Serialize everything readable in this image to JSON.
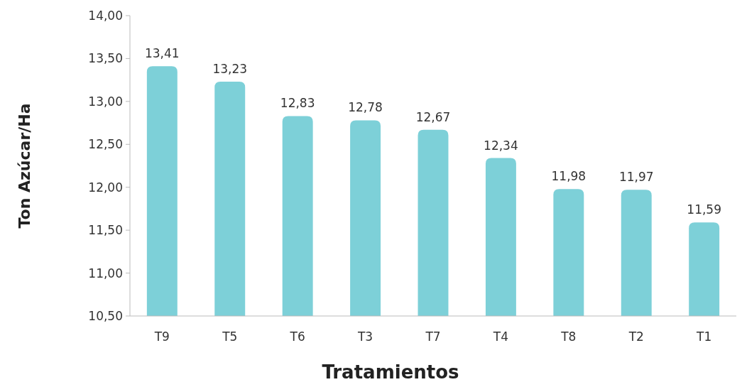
{
  "chart_data": {
    "type": "bar",
    "xlabel": "Tratamientos",
    "ylabel": "Ton Azúcar/Ha",
    "categories": [
      "T9",
      "T5",
      "T6",
      "T3",
      "T7",
      "T4",
      "T8",
      "T2",
      "T1"
    ],
    "values": [
      13.41,
      13.23,
      12.83,
      12.78,
      12.67,
      12.34,
      11.98,
      11.97,
      11.59
    ],
    "value_labels": [
      "13,41",
      "13,23",
      "12,83",
      "12,78",
      "12,67",
      "12,34",
      "11,98",
      "11,97",
      "11,59"
    ],
    "color": "#7dd0d8",
    "ylim": [
      10.5,
      14
    ],
    "yticks": [
      {
        "value": 10.5,
        "label": "10,50"
      },
      {
        "value": 11,
        "label": "11,00"
      },
      {
        "value": 11.5,
        "label": "11,50"
      },
      {
        "value": 12,
        "label": "12,00"
      },
      {
        "value": 12.5,
        "label": "12,50"
      },
      {
        "value": 13,
        "label": "13,00"
      },
      {
        "value": 13.5,
        "label": "13,50"
      },
      {
        "value": 14,
        "label": "14,00"
      }
    ],
    "grid": false
  }
}
